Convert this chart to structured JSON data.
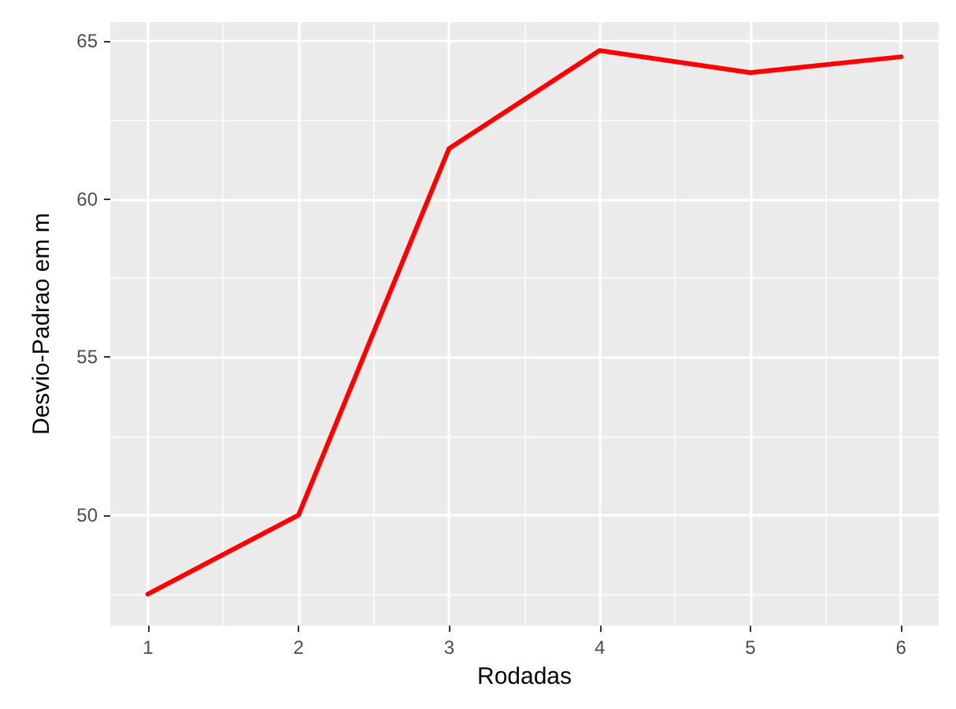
{
  "chart_data": {
    "type": "line",
    "xlabel": "Rodadas",
    "ylabel": "Desvio-Padrao em m",
    "x": [
      1,
      2,
      3,
      4,
      5,
      6
    ],
    "series": [
      {
        "color": "#ff0000",
        "values": [
          47.5,
          50.0,
          61.6,
          64.7,
          64.0,
          64.5
        ]
      }
    ],
    "xlim": [
      0.75,
      6.25
    ],
    "xticks": [
      1,
      2,
      3,
      4,
      5,
      6
    ],
    "ylim": [
      46.5,
      65.6
    ],
    "yticks": [
      50,
      55,
      60,
      65
    ],
    "grid": true,
    "marker": "none",
    "line_style": "solid"
  }
}
